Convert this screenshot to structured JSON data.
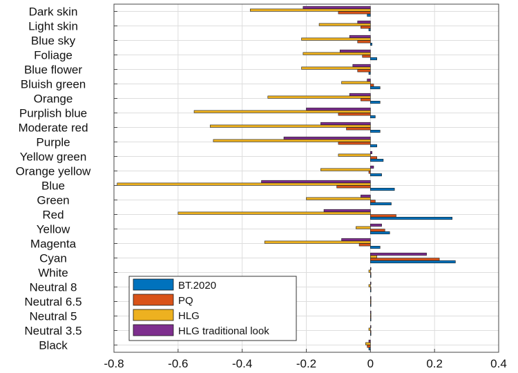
{
  "chart_data": {
    "type": "bar",
    "orientation": "horizontal",
    "categories": [
      "Dark skin",
      "Light skin",
      "Blue sky",
      "Foliage",
      "Blue flower",
      "Bluish green",
      "Orange",
      "Purplish blue",
      "Moderate red",
      "Purple",
      "Yellow green",
      "Orange yellow",
      "Blue",
      "Green",
      "Red",
      "Yellow",
      "Magenta",
      "Cyan",
      "White",
      "Neutral 8",
      "Neutral 6.5",
      "Neutral 5",
      "Neutral 3.5",
      "Black"
    ],
    "series": [
      {
        "name": "BT.2020",
        "color": "#0072BD",
        "values": [
          -0.01,
          -0.005,
          0.005,
          0.02,
          -0.005,
          0.03,
          0.03,
          0.015,
          0.03,
          0.02,
          0.04,
          0.035,
          0.075,
          0.065,
          0.255,
          0.06,
          0.03,
          0.265,
          0,
          0,
          0,
          0,
          0,
          -0.005
        ]
      },
      {
        "name": "PQ",
        "color": "#D95319",
        "values": [
          -0.1,
          -0.03,
          -0.04,
          -0.025,
          -0.04,
          0.01,
          -0.03,
          -0.1,
          -0.075,
          -0.1,
          0.02,
          -0.005,
          -0.105,
          0.015,
          0.08,
          0.045,
          -0.035,
          0.215,
          0,
          0,
          0,
          0,
          0,
          -0.01
        ]
      },
      {
        "name": "HLG",
        "color": "#EDB120",
        "values": [
          -0.375,
          -0.16,
          -0.215,
          -0.21,
          -0.215,
          -0.09,
          -0.32,
          -0.55,
          -0.5,
          -0.49,
          -0.1,
          -0.155,
          -0.79,
          -0.2,
          -0.6,
          -0.045,
          -0.33,
          0.02,
          -0.005,
          -0.005,
          0,
          0,
          -0.005,
          -0.015
        ]
      },
      {
        "name": "HLG traditional look",
        "color": "#7E2F8E",
        "values": [
          -0.21,
          -0.04,
          -0.065,
          -0.095,
          -0.055,
          -0.01,
          -0.065,
          -0.2,
          -0.155,
          -0.27,
          0.005,
          0.01,
          -0.34,
          -0.03,
          -0.145,
          0.035,
          -0.09,
          0.175,
          0,
          0,
          0,
          0,
          0,
          -0.005
        ]
      }
    ],
    "xlim": [
      -0.8,
      0.4
    ],
    "xticks": [
      "-0.8",
      "-0.6",
      "-0.4",
      "-0.2",
      "0",
      "0.2",
      "0.4"
    ],
    "xtick_values": [
      -0.8,
      -0.6,
      -0.4,
      -0.2,
      0,
      0.2,
      0.4
    ],
    "grid": true,
    "legend_position": "bottom-left",
    "title": "",
    "xlabel": "",
    "ylabel": ""
  }
}
